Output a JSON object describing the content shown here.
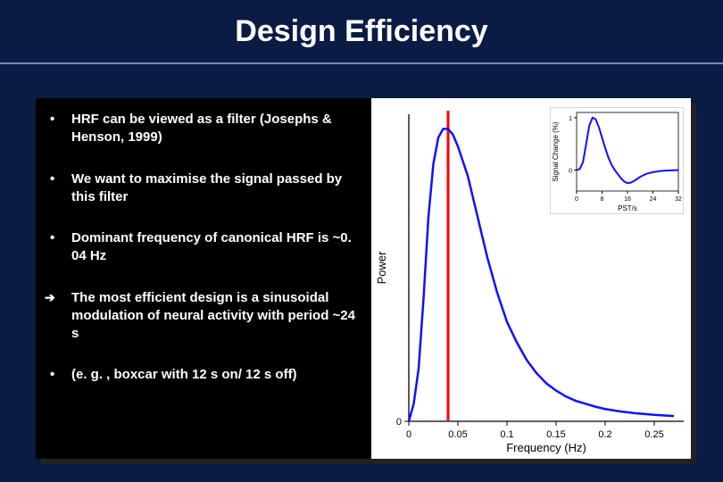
{
  "header": {
    "title": "Design Efficiency"
  },
  "bullets": [
    {
      "text": "HRF can be viewed as a filter (Josephs & Henson, 1999)",
      "arrow": false
    },
    {
      "text": "We want to maximise the signal passed by this filter",
      "arrow": false
    },
    {
      "text": "Dominant frequency of canonical HRF is ~0. 04 Hz",
      "arrow": false
    },
    {
      "text": "The most efficient design is a sinusoidal modulation of neural activity with period ~24 s",
      "arrow": true
    },
    {
      "text": "(e. g. , boxcar with 12 s on/ 12 s off)",
      "arrow": false
    }
  ],
  "main_chart": {
    "type": "line",
    "xlabel": "Frequency (Hz)",
    "ylabel": "Power",
    "xlim": [
      0,
      0.28
    ],
    "ylim": [
      0,
      1.05
    ],
    "xticks": [
      0,
      0.05,
      0.1,
      0.15,
      0.2,
      0.25
    ],
    "xtick_labels": [
      "0",
      "0.05",
      "0.1",
      "0.15",
      "0.2",
      "0.25"
    ],
    "yticks": [
      0
    ],
    "ytick_labels": [
      "0"
    ],
    "line_color": "#1010ff",
    "line_width": 2.5,
    "axis_color": "#000000",
    "marker_line_color": "#ff0000",
    "marker_x": 0.04,
    "background_color": "#ffffff",
    "label_fontsize": 13,
    "tick_fontsize": 11,
    "points": [
      {
        "x": 0.0,
        "y": 0.0
      },
      {
        "x": 0.005,
        "y": 0.06
      },
      {
        "x": 0.01,
        "y": 0.18
      },
      {
        "x": 0.015,
        "y": 0.42
      },
      {
        "x": 0.02,
        "y": 0.7
      },
      {
        "x": 0.025,
        "y": 0.88
      },
      {
        "x": 0.03,
        "y": 0.97
      },
      {
        "x": 0.035,
        "y": 1.0
      },
      {
        "x": 0.04,
        "y": 1.0
      },
      {
        "x": 0.045,
        "y": 0.98
      },
      {
        "x": 0.05,
        "y": 0.94
      },
      {
        "x": 0.06,
        "y": 0.84
      },
      {
        "x": 0.07,
        "y": 0.7
      },
      {
        "x": 0.08,
        "y": 0.56
      },
      {
        "x": 0.09,
        "y": 0.44
      },
      {
        "x": 0.1,
        "y": 0.34
      },
      {
        "x": 0.11,
        "y": 0.27
      },
      {
        "x": 0.12,
        "y": 0.21
      },
      {
        "x": 0.13,
        "y": 0.165
      },
      {
        "x": 0.14,
        "y": 0.13
      },
      {
        "x": 0.15,
        "y": 0.105
      },
      {
        "x": 0.16,
        "y": 0.085
      },
      {
        "x": 0.17,
        "y": 0.07
      },
      {
        "x": 0.18,
        "y": 0.06
      },
      {
        "x": 0.19,
        "y": 0.05
      },
      {
        "x": 0.2,
        "y": 0.042
      },
      {
        "x": 0.215,
        "y": 0.034
      },
      {
        "x": 0.23,
        "y": 0.028
      },
      {
        "x": 0.25,
        "y": 0.022
      },
      {
        "x": 0.27,
        "y": 0.018
      }
    ]
  },
  "inset_chart": {
    "type": "line",
    "xlabel": "PST/s",
    "ylabel": "Signal Change (%)",
    "xlim": [
      0,
      32
    ],
    "ylim": [
      -0.4,
      1.1
    ],
    "xticks": [
      0,
      8,
      16,
      24,
      32
    ],
    "xtick_labels": [
      "0",
      "8",
      "16",
      "24",
      "32"
    ],
    "yticks": [
      0,
      1
    ],
    "ytick_labels": [
      "0",
      "1"
    ],
    "line_color": "#1010ff",
    "line_width": 2,
    "axis_color": "#000000",
    "background_color": "#ffffff",
    "border_color": "#b0b0b0",
    "label_fontsize": 8,
    "tick_fontsize": 7,
    "points": [
      {
        "x": 0,
        "y": 0.0
      },
      {
        "x": 1,
        "y": 0.02
      },
      {
        "x": 2,
        "y": 0.15
      },
      {
        "x": 3,
        "y": 0.5
      },
      {
        "x": 4,
        "y": 0.85
      },
      {
        "x": 5,
        "y": 1.0
      },
      {
        "x": 6,
        "y": 0.97
      },
      {
        "x": 7,
        "y": 0.82
      },
      {
        "x": 8,
        "y": 0.62
      },
      {
        "x": 9,
        "y": 0.42
      },
      {
        "x": 10,
        "y": 0.24
      },
      {
        "x": 11,
        "y": 0.1
      },
      {
        "x": 12,
        "y": 0.0
      },
      {
        "x": 13,
        "y": -0.08
      },
      {
        "x": 14,
        "y": -0.16
      },
      {
        "x": 15,
        "y": -0.22
      },
      {
        "x": 16,
        "y": -0.25
      },
      {
        "x": 17,
        "y": -0.24
      },
      {
        "x": 18,
        "y": -0.21
      },
      {
        "x": 19,
        "y": -0.17
      },
      {
        "x": 20,
        "y": -0.13
      },
      {
        "x": 22,
        "y": -0.07
      },
      {
        "x": 24,
        "y": -0.04
      },
      {
        "x": 26,
        "y": -0.02
      },
      {
        "x": 28,
        "y": -0.01
      },
      {
        "x": 30,
        "y": -0.005
      },
      {
        "x": 32,
        "y": 0.0
      }
    ]
  }
}
